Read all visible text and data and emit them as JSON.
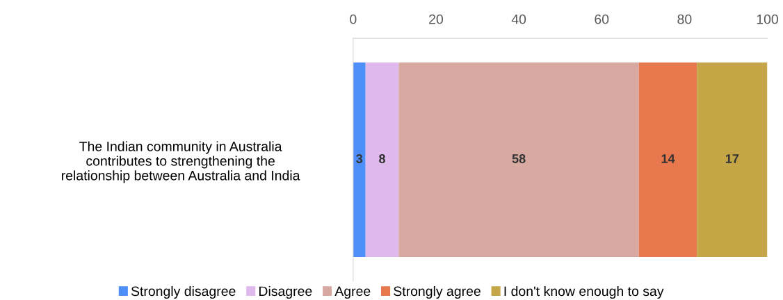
{
  "chart_data": {
    "type": "bar",
    "orientation": "horizontal",
    "stacked": true,
    "categories": [
      "The Indian community in Australia\ncontributes to strengthening the\nrelationship between Australia and India"
    ],
    "series": [
      {
        "name": "Strongly disagree",
        "color": "#4d8ef8",
        "values": [
          3
        ]
      },
      {
        "name": "Disagree",
        "color": "#dfb8ec",
        "values": [
          8
        ]
      },
      {
        "name": "Agree",
        "color": "#d8a9a0",
        "values": [
          58
        ]
      },
      {
        "name": "Strongly agree",
        "color": "#e8784e",
        "values": [
          14
        ]
      },
      {
        "name": "I don't know enough to say",
        "color": "#c5a646",
        "values": [
          17
        ]
      }
    ],
    "xlim": [
      0,
      100
    ],
    "xticks": [
      0,
      20,
      40,
      60,
      80,
      100
    ],
    "data_labels": true,
    "grid": false,
    "legend": "bottom"
  }
}
